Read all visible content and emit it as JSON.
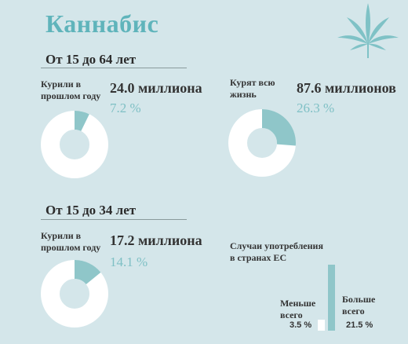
{
  "title": "Каннабис",
  "colors": {
    "accent": "#5fb4bb",
    "light_accent": "#7fc0c5",
    "donut_fill": "#8fc6c9",
    "ring": "#ffffff",
    "background": "#d4e6ea"
  },
  "section1": {
    "heading": "От 15 до 64 лет",
    "left": {
      "label_line1": "Курили в",
      "label_line2": "прошлом году",
      "value": "24.0 миллиона",
      "percent": "7.2 %",
      "share": 0.072
    },
    "right": {
      "label_line1": "Курят всю",
      "label_line2": "жизнь",
      "value": "87.6 миллионов",
      "percent": "26.3 %",
      "share": 0.263
    }
  },
  "section2": {
    "heading": "От 15 до 34 лет",
    "left": {
      "label_line1": "Курили в",
      "label_line2": "прошлом году",
      "value": "17.2 миллиона",
      "percent": "14.1 %",
      "share": 0.141
    },
    "eu": {
      "label_line1": "Случаи употребления",
      "label_line2": "в странах ЕС",
      "min_label_line1": "Меньше",
      "min_label_line2": "всего",
      "min_value": "3.5 %",
      "min_share": 3.5,
      "max_label_line1": "Больше",
      "max_label_line2": "всего",
      "max_value": "21.5 %",
      "max_share": 21.5
    }
  },
  "icon": "cannabis-leaf-icon"
}
